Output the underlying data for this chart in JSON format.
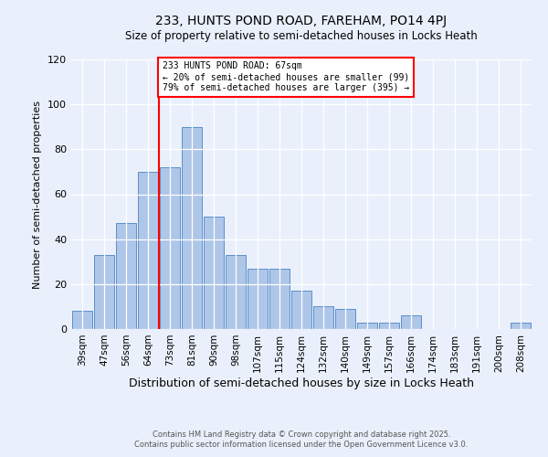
{
  "title": "233, HUNTS POND ROAD, FAREHAM, PO14 4PJ",
  "subtitle": "Size of property relative to semi-detached houses in Locks Heath",
  "xlabel": "Distribution of semi-detached houses by size in Locks Heath",
  "ylabel": "Number of semi-detached properties",
  "categories": [
    "39sqm",
    "47sqm",
    "56sqm",
    "64sqm",
    "73sqm",
    "81sqm",
    "90sqm",
    "98sqm",
    "107sqm",
    "115sqm",
    "124sqm",
    "132sqm",
    "140sqm",
    "149sqm",
    "157sqm",
    "166sqm",
    "174sqm",
    "183sqm",
    "191sqm",
    "200sqm",
    "208sqm"
  ],
  "values": [
    8,
    33,
    47,
    70,
    72,
    90,
    50,
    33,
    27,
    27,
    17,
    10,
    9,
    3,
    3,
    6,
    0,
    0,
    0,
    0,
    3
  ],
  "bar_color": "#aec6e8",
  "bar_edge_color": "#5b8fc9",
  "background_color": "#eaf0fb",
  "vline_x": 3.5,
  "vline_label": "233 HUNTS POND ROAD: 67sqm",
  "annotation_line1": "← 20% of semi-detached houses are smaller (99)",
  "annotation_line2": "79% of semi-detached houses are larger (395) →",
  "ylim": [
    0,
    120
  ],
  "yticks": [
    0,
    20,
    40,
    60,
    80,
    100,
    120
  ],
  "footnote1": "Contains HM Land Registry data © Crown copyright and database right 2025.",
  "footnote2": "Contains public sector information licensed under the Open Government Licence v3.0."
}
